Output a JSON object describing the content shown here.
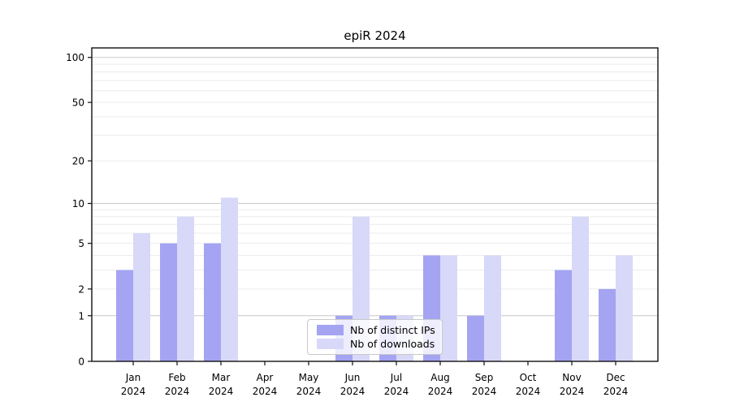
{
  "title": "epiR 2024",
  "chart_data": {
    "type": "bar",
    "title": "epiR 2024",
    "categories": [
      "Jan",
      "Feb",
      "Mar",
      "Apr",
      "May",
      "Jun",
      "Jul",
      "Aug",
      "Sep",
      "Oct",
      "Nov",
      "Dec"
    ],
    "category_year": "2024",
    "series": [
      {
        "name": "Nb of distinct IPs",
        "color": "#a4a4f3",
        "values": [
          3,
          5,
          5,
          0,
          0,
          1,
          1,
          4,
          1,
          0,
          3,
          2
        ]
      },
      {
        "name": "Nb of downloads",
        "color": "#d8d8f8",
        "values": [
          6,
          8,
          11,
          0,
          0,
          8,
          1,
          4,
          4,
          0,
          8,
          4
        ]
      }
    ],
    "yscale": "log1p",
    "ylim": [
      0,
      115
    ],
    "yticks": [
      0,
      1,
      2,
      5,
      10,
      20,
      50,
      100
    ],
    "major_gridlines": [
      1,
      10,
      100
    ],
    "minor_gridlines": [
      2,
      3,
      4,
      5,
      6,
      7,
      8,
      9,
      20,
      30,
      40,
      50,
      60,
      70,
      80,
      90
    ],
    "grid": true,
    "legend_position": "lower center"
  },
  "colors": {
    "axis": "#111111",
    "major_grid": "#c8c8c8",
    "minor_grid": "#ececec",
    "background": "#ffffff",
    "text": "#000000"
  }
}
